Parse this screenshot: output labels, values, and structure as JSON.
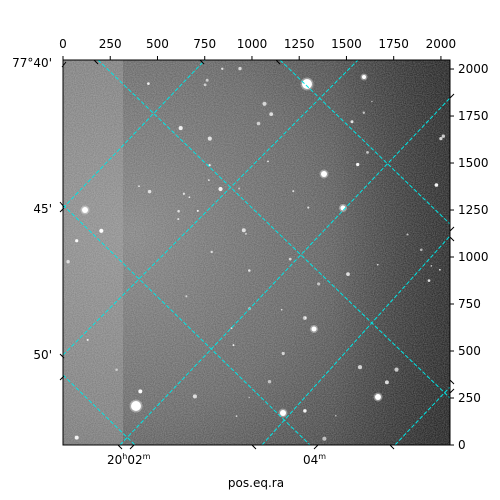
{
  "chart_data": {
    "type": "image",
    "image": "grayscale astronomical sky image with scattered bright stars",
    "xlabel": "pos.eq.ra",
    "ylabel": "",
    "pixel_axes": {
      "xlim": [
        0,
        2048
      ],
      "ylim": [
        0,
        2048
      ],
      "top_ticks": [
        "0",
        "250",
        "500",
        "750",
        "1000",
        "1250",
        "1500",
        "1750",
        "2000"
      ],
      "top_tick_values": [
        0,
        250,
        500,
        750,
        1000,
        1250,
        1500,
        1750,
        2000
      ],
      "right_ticks": [
        "0",
        "250",
        "500",
        "750",
        "1000",
        "1250",
        "1500",
        "1750",
        "2000"
      ],
      "right_tick_values": [
        0,
        250,
        500,
        750,
        1000,
        1250,
        1500,
        1750,
        2000
      ]
    },
    "world_axes": {
      "ra_ticks": [
        {
          "label": "20",
          "sup_h": "h",
          "mid": "02",
          "sup_m": "m"
        },
        {
          "label": "04",
          "sup_m": "m"
        }
      ],
      "dec_ticks": [
        "77°40'",
        "45'",
        "50'"
      ]
    },
    "grid": true,
    "grid_color": "#00e5e5",
    "colormap": "gray"
  }
}
